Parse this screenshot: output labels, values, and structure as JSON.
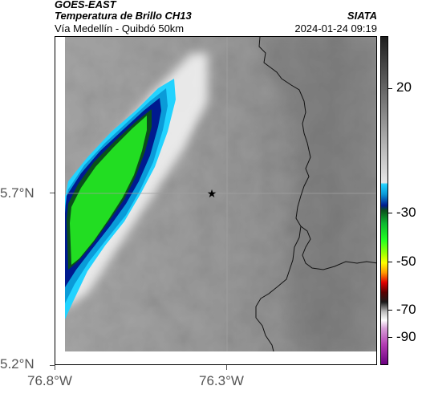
{
  "header": {
    "satellite": "GOES-EAST",
    "product": "Temperatura de Brillo CH13",
    "route": "Vía Medellín - Quibdó 50km",
    "organization": "SIATA",
    "timestamp": "2024-01-24 09:19"
  },
  "map": {
    "lat_labels": [
      "5.7°N",
      "5.2°N"
    ],
    "lon_labels": [
      "76.8°W",
      "76.3°W"
    ],
    "marker_icon": "star-icon",
    "colors": {
      "storm_core": "#22dd22",
      "storm_edge": "#0a9bd8",
      "storm_outer": "#22d3ff",
      "background_gray": "#8f8f8f"
    }
  },
  "colorbar": {
    "tick_labels": [
      "20",
      "-30",
      "-50",
      "-70",
      "-90"
    ]
  }
}
